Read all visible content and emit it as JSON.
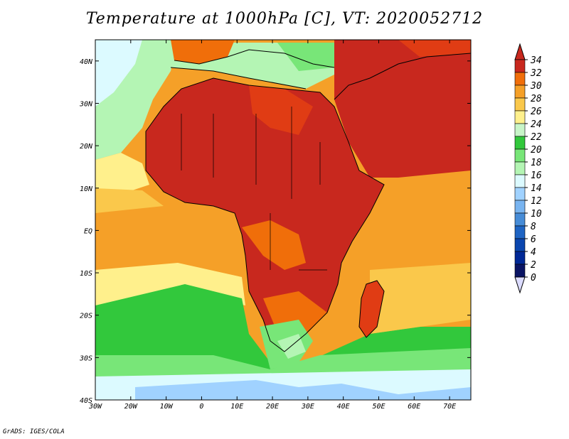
{
  "title": "Temperature at 1000hPa [C], VT: 2020052712",
  "credit": "GrADS: IGES/COLA",
  "map": {
    "lon_range": [
      -30,
      76
    ],
    "lat_range": [
      -40,
      45
    ],
    "lon_ticks": [
      {
        "value": -30,
        "label": "30W"
      },
      {
        "value": -20,
        "label": "20W"
      },
      {
        "value": -10,
        "label": "10W"
      },
      {
        "value": 0,
        "label": "0"
      },
      {
        "value": 10,
        "label": "10E"
      },
      {
        "value": 20,
        "label": "20E"
      },
      {
        "value": 30,
        "label": "30E"
      },
      {
        "value": 40,
        "label": "40E"
      },
      {
        "value": 50,
        "label": "50E"
      },
      {
        "value": 60,
        "label": "60E"
      },
      {
        "value": 70,
        "label": "70E"
      }
    ],
    "lat_ticks": [
      {
        "value": 40,
        "label": "40N"
      },
      {
        "value": 30,
        "label": "30N"
      },
      {
        "value": 20,
        "label": "20N"
      },
      {
        "value": 10,
        "label": "10N"
      },
      {
        "value": 0,
        "label": "EQ"
      },
      {
        "value": -10,
        "label": "10S"
      },
      {
        "value": -20,
        "label": "20S"
      },
      {
        "value": -30,
        "label": "30S"
      },
      {
        "value": -40,
        "label": "40S"
      }
    ]
  },
  "colorbar": {
    "labels": [
      "34",
      "32",
      "30",
      "28",
      "26",
      "24",
      "22",
      "20",
      "18",
      "16",
      "14",
      "12",
      "10",
      "8",
      "6",
      "4",
      "2",
      "0"
    ],
    "colors": [
      "#c8281e",
      "#e03c14",
      "#f06e0a",
      "#f5a028",
      "#fac84b",
      "#fff08c",
      "#c8f5c8",
      "#32c83c",
      "#78e678",
      "#b4f5b4",
      "#dcfaff",
      "#a0d2ff",
      "#78b4f0",
      "#468cd7",
      "#1e64c3",
      "#0a46af",
      "#002896",
      "#0a1464"
    ],
    "top_color": "#c8281e",
    "bottom_color": "#dcdcff"
  }
}
